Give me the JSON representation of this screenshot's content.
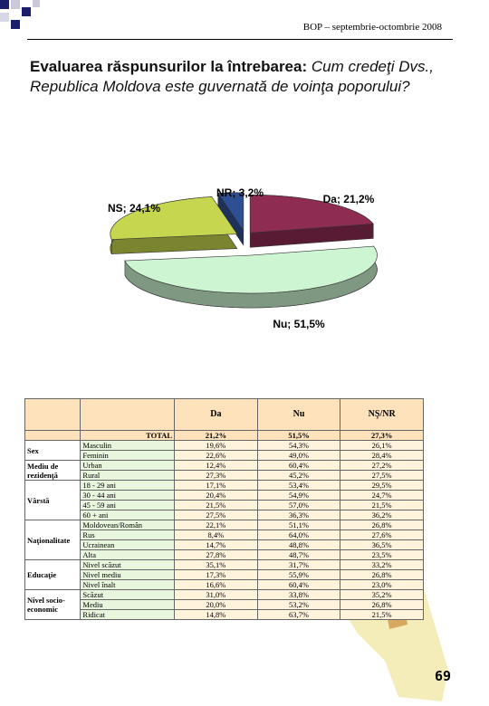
{
  "header": "BOP – septembrie-octombrie 2008",
  "title": {
    "lead": "Evaluarea răspunsurilor la întrebarea: ",
    "question": "Cum credeţi Dvs., Republica Moldova este guvernată de voinţa poporului?"
  },
  "chart_data": {
    "type": "pie",
    "values": [
      21.2,
      51.5,
      24.1,
      3.2
    ],
    "value_labels": [
      "Da; 21,2%",
      "Nu; 51,5%",
      "NS; 24,1%",
      "NR; 3,2%"
    ],
    "colors": [
      "#8e2c52",
      "#cdf5d2",
      "#c6d64e",
      "#2e4f93"
    ]
  },
  "table": {
    "columns": [
      "Da",
      "Nu",
      "NŞ/NR"
    ],
    "total": {
      "label": "TOTAL",
      "values": [
        "21,2%",
        "51,5%",
        "27,3%"
      ]
    },
    "groups": [
      {
        "name": "Sex",
        "rows": [
          {
            "label": "Masculin",
            "values": [
              "19,6%",
              "54,3%",
              "26,1%"
            ]
          },
          {
            "label": "Feminin",
            "values": [
              "22,6%",
              "49,0%",
              "28,4%"
            ]
          }
        ]
      },
      {
        "name": "Mediu de rezidenţă",
        "rows": [
          {
            "label": "Urban",
            "values": [
              "12,4%",
              "60,4%",
              "27,2%"
            ]
          },
          {
            "label": "Rural",
            "values": [
              "27,3%",
              "45,2%",
              "27,5%"
            ]
          }
        ]
      },
      {
        "name": "Vârstă",
        "rows": [
          {
            "label": "18 - 29 ani",
            "values": [
              "17,1%",
              "53,4%",
              "29,5%"
            ]
          },
          {
            "label": "30 - 44 ani",
            "values": [
              "20,4%",
              "54,9%",
              "24,7%"
            ]
          },
          {
            "label": "45 - 59 ani",
            "values": [
              "21,5%",
              "57,0%",
              "21,5%"
            ]
          },
          {
            "label": "60 + ani",
            "values": [
              "27,5%",
              "36,3%",
              "36,2%"
            ]
          }
        ]
      },
      {
        "name": "Naţionalitate",
        "rows": [
          {
            "label": "Moldovean/Român",
            "values": [
              "22,1%",
              "51,1%",
              "26,8%"
            ]
          },
          {
            "label": "Rus",
            "values": [
              "8,4%",
              "64,0%",
              "27,6%"
            ]
          },
          {
            "label": "Ucrainean",
            "values": [
              "14,7%",
              "48,8%",
              "36,5%"
            ]
          },
          {
            "label": "Alta",
            "values": [
              "27,8%",
              "48,7%",
              "23,5%"
            ]
          }
        ]
      },
      {
        "name": "Educaţie",
        "rows": [
          {
            "label": "Nivel scăzut",
            "values": [
              "35,1%",
              "31,7%",
              "33,2%"
            ]
          },
          {
            "label": "Nivel mediu",
            "values": [
              "17,3%",
              "55,9%",
              "26,8%"
            ]
          },
          {
            "label": "Nivel înalt",
            "values": [
              "16,6%",
              "60,4%",
              "23,0%"
            ]
          }
        ]
      },
      {
        "name": "Nivel socio-economic",
        "rows": [
          {
            "label": "Scăzut",
            "values": [
              "31,0%",
              "33,8%",
              "35,2%"
            ]
          },
          {
            "label": "Mediu",
            "values": [
              "20,0%",
              "53,2%",
              "26,8%"
            ]
          },
          {
            "label": "Ridicat",
            "values": [
              "14,8%",
              "63,7%",
              "21,5%"
            ]
          }
        ]
      }
    ]
  },
  "page_number": "69"
}
